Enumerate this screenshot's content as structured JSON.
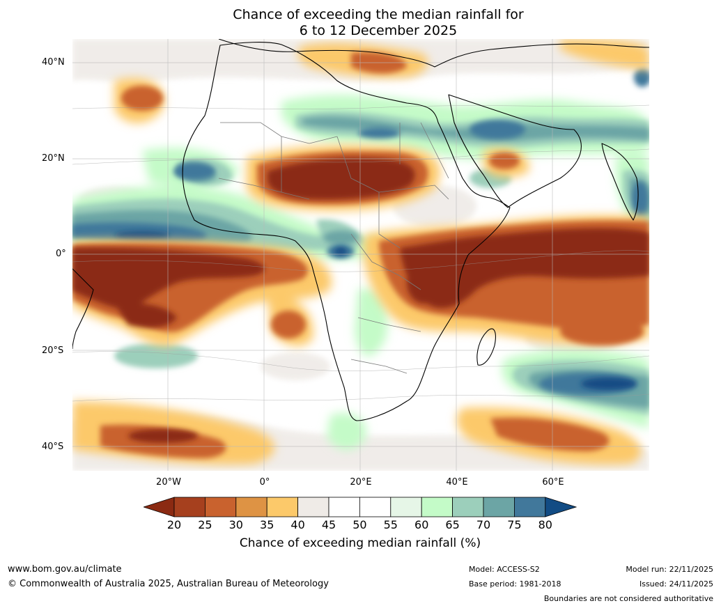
{
  "title": {
    "line1": "Chance of exceeding the median rainfall for",
    "line2": "6 to 12 December 2025"
  },
  "map": {
    "lat_labels": [
      "40°N",
      "20°N",
      "0°",
      "20°S",
      "40°S"
    ],
    "lon_labels": [
      "20°W",
      "0°",
      "20°E",
      "40°E",
      "60°E"
    ]
  },
  "legend": {
    "title": "Chance of exceeding median rainfall (%)",
    "ticks": [
      "20",
      "25",
      "30",
      "35",
      "40",
      "45",
      "50",
      "55",
      "60",
      "65",
      "70",
      "75",
      "80"
    ],
    "colors": [
      "#8b2a12",
      "#a6401e",
      "#c9622e",
      "#de9344",
      "#fcc96a",
      "#efebe7",
      "#ffffff",
      "#ffffff",
      "#e6f6e7",
      "#c4fbc8",
      "#9ccfbb",
      "#6ca5a5",
      "#41789b",
      "#124c84"
    ]
  },
  "footer": {
    "website": "www.bom.gov.au/climate",
    "copyright": "© Commonwealth of Australia 2025, Australian Bureau of Meteorology",
    "model": "Model: ACCESS-S2",
    "base_period": "Base period: 1981-2018",
    "model_run": "Model run: 22/11/2025",
    "issued": "Issued: 24/11/2025",
    "disclaimer": "Boundaries are not considered authoritative"
  }
}
